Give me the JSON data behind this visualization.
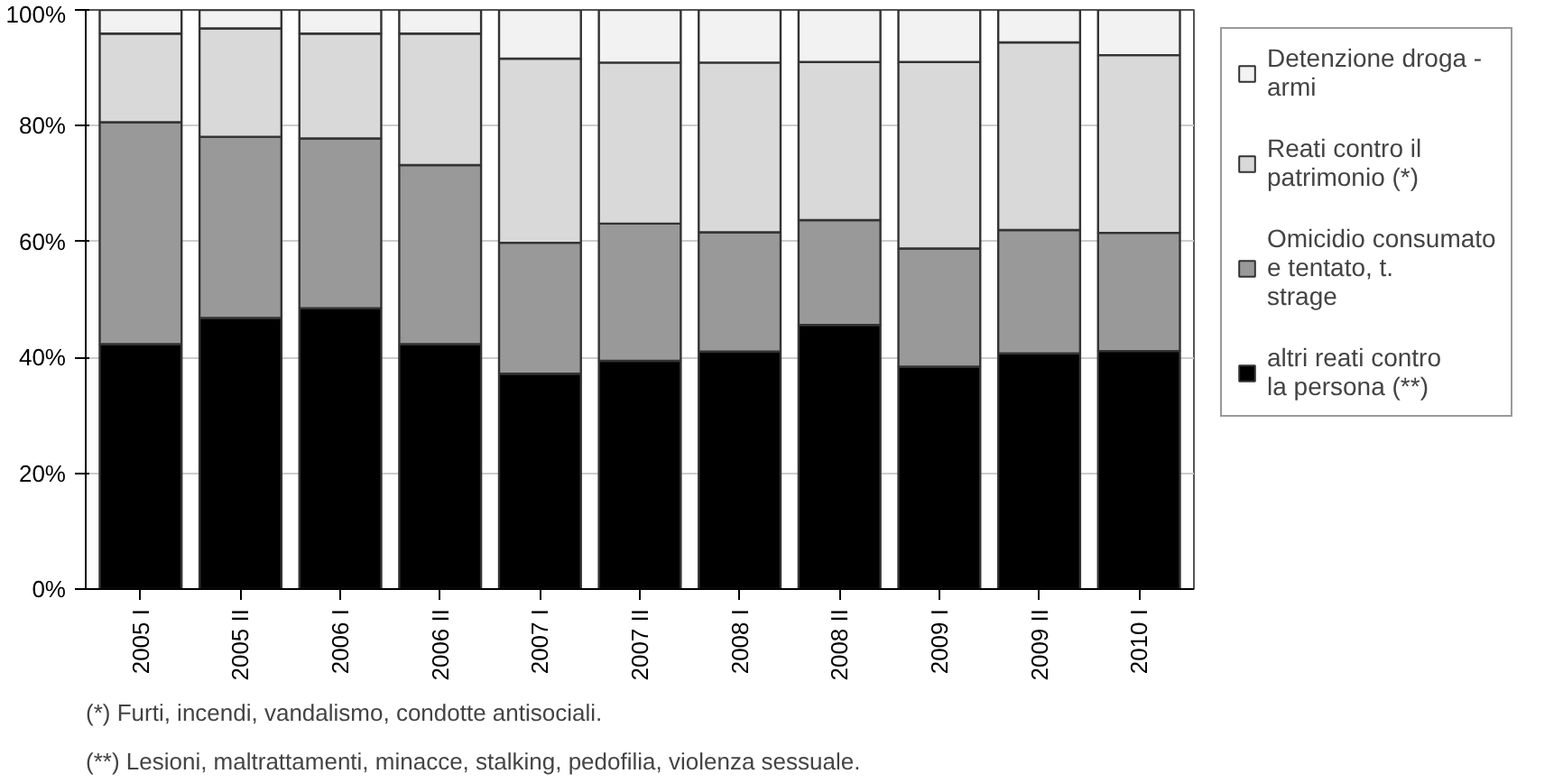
{
  "chart_data": {
    "type": "bar",
    "stacked": true,
    "categories": [
      "2005 I",
      "2005 II",
      "2006 I",
      "2006 II",
      "2007 I",
      "2007 II",
      "2008 I",
      "2008 II",
      "2009 I",
      "2009 II",
      "2010 I"
    ],
    "series": [
      {
        "name": "altri reati contro la persona (**)",
        "color": "#000000",
        "values": [
          42.3,
          46.8,
          48.5,
          42.3,
          37.2,
          39.4,
          41.0,
          45.6,
          38.4,
          40.7,
          41.1
        ]
      },
      {
        "name": "Omicidio consumato e tentato, t. strage",
        "color": "#999999",
        "values": [
          38.3,
          31.3,
          29.3,
          30.9,
          22.6,
          23.7,
          20.6,
          18.1,
          20.4,
          21.3,
          20.4
        ]
      },
      {
        "name": "Reati contro il patrimonio (*)",
        "color": "#d9d9d9",
        "values": [
          15.3,
          18.7,
          18.1,
          22.7,
          31.8,
          27.8,
          29.3,
          27.3,
          32.2,
          32.4,
          30.7
        ]
      },
      {
        "name": "Detenzione droga - armi",
        "color": "#f2f2f2",
        "values": [
          4.1,
          3.2,
          4.1,
          4.1,
          8.4,
          9.1,
          9.1,
          9.0,
          9.0,
          5.6,
          7.8
        ]
      }
    ],
    "ylim": [
      0,
      100
    ],
    "yticks": [
      {
        "value": 0,
        "label": "0%"
      },
      {
        "value": 20,
        "label": "20%"
      },
      {
        "value": 40,
        "label": "40%"
      },
      {
        "value": 60,
        "label": "60%"
      },
      {
        "value": 80,
        "label": "80%"
      },
      {
        "value": 100,
        "label": "100%"
      }
    ],
    "grid": "y",
    "legend": "right",
    "annotations": [
      "(*)  Furti, incendi, vandalismo, condotte antisociali.",
      "(**)  Lesioni, maltrattamenti, minacce, stalking, pedofilia, violenza sessuale."
    ]
  }
}
